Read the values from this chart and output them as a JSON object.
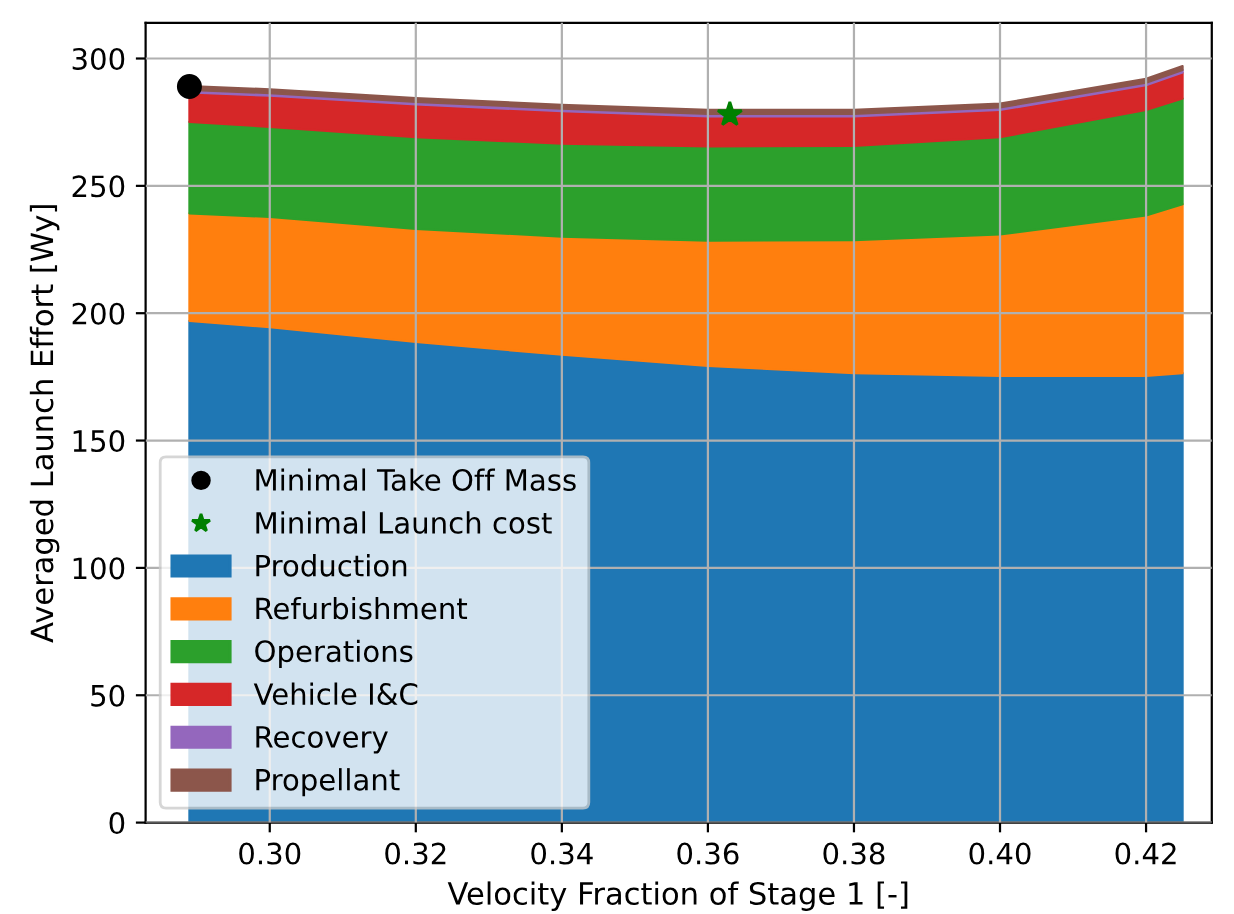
{
  "chart_data": {
    "type": "area",
    "stacked": true,
    "xlabel": "Velocity Fraction of Stage 1 [-]",
    "ylabel": "Averaged Launch Effort [Wy]",
    "x": [
      0.289,
      0.3,
      0.32,
      0.34,
      0.36,
      0.38,
      0.4,
      0.42,
      0.425
    ],
    "series": [
      {
        "name": "Minimal Take Off Mass",
        "type": "scatter",
        "marker": "circle",
        "color": "#000000",
        "x": [
          0.289
        ],
        "values": [
          289
        ]
      },
      {
        "name": "Minimal Launch cost",
        "type": "scatter",
        "marker": "star",
        "color": "#008000",
        "x": [
          0.363
        ],
        "values": [
          278
        ]
      },
      {
        "name": "Production",
        "color": "#1f77b4",
        "values": [
          197,
          194.5,
          188.7,
          183.7,
          179.3,
          176.5,
          175.4,
          175.4,
          176.5
        ]
      },
      {
        "name": "Refurbishment",
        "color": "#ff7f0e",
        "values": [
          42.2,
          43.3,
          44.4,
          46.4,
          49.2,
          52.2,
          55.5,
          63,
          66.3
        ]
      },
      {
        "name": "Operations",
        "color": "#2ca02c",
        "values": [
          35.9,
          35.4,
          36,
          36.5,
          37,
          37,
          38.2,
          41.4,
          41.5
        ]
      },
      {
        "name": "Vehicle I&C",
        "color": "#d62728",
        "values": [
          11.6,
          12.2,
          12.9,
          12.7,
          11.8,
          11.6,
          10.7,
          9.7,
          10.2
        ]
      },
      {
        "name": "Recovery",
        "color": "#9467bd",
        "values": [
          1,
          1,
          1,
          1,
          1,
          1,
          1,
          1,
          1
        ]
      },
      {
        "name": "Propellant",
        "color": "#8c564b",
        "values": [
          1.5,
          1.5,
          1.5,
          1.5,
          1.5,
          1.5,
          1.5,
          1.5,
          1.5
        ]
      }
    ],
    "xlim": [
      0.283,
      0.429
    ],
    "ylim": [
      0,
      314
    ],
    "xticks": [
      {
        "value": 0.3,
        "label": "0.30"
      },
      {
        "value": 0.32,
        "label": "0.32"
      },
      {
        "value": 0.34,
        "label": "0.34"
      },
      {
        "value": 0.36,
        "label": "0.36"
      },
      {
        "value": 0.38,
        "label": "0.38"
      },
      {
        "value": 0.4,
        "label": "0.40"
      },
      {
        "value": 0.42,
        "label": "0.42"
      }
    ],
    "yticks": [
      0,
      50,
      100,
      150,
      200,
      250,
      300
    ],
    "grid": true,
    "legend": "bottom left"
  }
}
